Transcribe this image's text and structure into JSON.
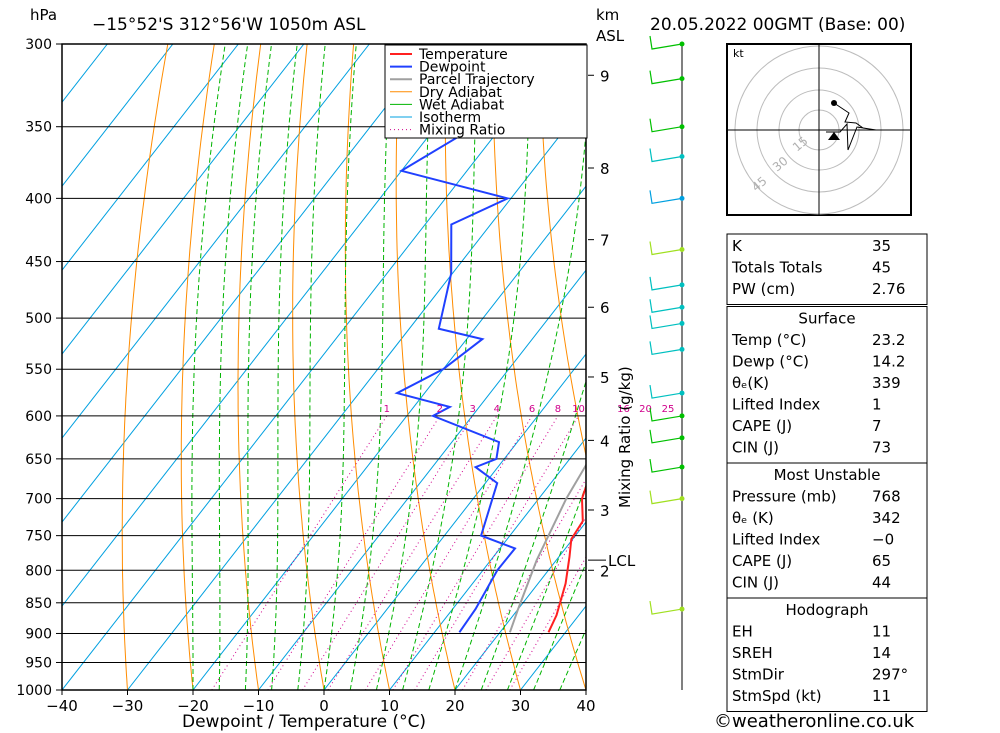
{
  "header": {
    "pressure_unit": "hPa",
    "location": "−15°52'S  312°56'W  1050m  ASL",
    "km_label": "km",
    "asl_label": "ASL",
    "datetime": "20.05.2022  00GMT  (Base: 00)"
  },
  "chart_data": {
    "type": "line",
    "title": "Skew-T log-P diagram",
    "xlabel": "Dewpoint / Temperature (°C)",
    "ylabel": "hPa",
    "right_axis_label": "Mixing Ratio (g/kg)",
    "xlim": [
      -40,
      40
    ],
    "ylim": [
      1000,
      300
    ],
    "x_ticks": [
      "−40",
      "−30",
      "−20",
      "−10",
      "0",
      "10",
      "20",
      "30",
      "40"
    ],
    "pressure_ticks": [
      300,
      350,
      400,
      450,
      500,
      550,
      600,
      650,
      700,
      750,
      800,
      850,
      900,
      950,
      1000
    ],
    "km_ticks": [
      {
        "label": "9",
        "p": 318
      },
      {
        "label": "8",
        "p": 378
      },
      {
        "label": "7",
        "p": 432
      },
      {
        "label": "6",
        "p": 490
      },
      {
        "label": "5",
        "p": 558
      },
      {
        "label": "4",
        "p": 628
      },
      {
        "label": "3",
        "p": 715
      },
      {
        "label": "2",
        "p": 800
      }
    ],
    "lcl": {
      "label": "LCL",
      "p": 785
    },
    "mixing_ratio_labels": [
      "1",
      "2",
      "3",
      "4",
      "6",
      "8",
      "10",
      "16",
      "20",
      "25"
    ],
    "mixing_ratio_values": [
      1,
      2,
      3,
      4,
      6,
      8,
      10,
      16,
      20,
      25
    ],
    "legend": [
      "Temperature",
      "Dewpoint",
      "Parcel Trajectory",
      "Dry Adiabat",
      "Wet Adiabat",
      "Isotherm",
      "Mixing Ratio"
    ],
    "series": [
      {
        "name": "Temperature",
        "color": "#ff2020",
        "points": [
          [
            898,
            27.4
          ],
          [
            870,
            26.6
          ],
          [
            820,
            24.2
          ],
          [
            780,
            21.6
          ],
          [
            755,
            19.8
          ],
          [
            730,
            19.4
          ],
          [
            700,
            16.6
          ],
          [
            670,
            15.0
          ],
          [
            650,
            14.7
          ],
          [
            620,
            12.3
          ],
          [
            600,
            13.8
          ],
          [
            590,
            13.0
          ],
          [
            560,
            10.8
          ],
          [
            520,
            6.5
          ],
          [
            480,
            1.4
          ],
          [
            440,
            -3.5
          ],
          [
            400,
            -11.0
          ],
          [
            380,
            -14.3
          ],
          [
            355,
            -20.3
          ],
          [
            330,
            -26.6
          ],
          [
            312,
            -33.5
          ],
          [
            300,
            -35.0
          ]
        ]
      },
      {
        "name": "Dewpoint",
        "color": "#2040ff",
        "points": [
          [
            898,
            13.8
          ],
          [
            860,
            13.5
          ],
          [
            800,
            12.2
          ],
          [
            768,
            12.3
          ],
          [
            750,
            5.6
          ],
          [
            680,
            1.8
          ],
          [
            660,
            -3.4
          ],
          [
            650,
            -1.2
          ],
          [
            630,
            -2.8
          ],
          [
            600,
            -16.0
          ],
          [
            590,
            -14.5
          ],
          [
            575,
            -24.2
          ],
          [
            550,
            -20.0
          ],
          [
            520,
            -17.6
          ],
          [
            510,
            -25.5
          ],
          [
            460,
            -30.2
          ],
          [
            420,
            -36.0
          ],
          [
            400,
            -30.5
          ],
          [
            380,
            -50.0
          ],
          [
            350,
            -44.0
          ],
          [
            330,
            -40.0
          ],
          [
            310,
            -33.0
          ],
          [
            300,
            -42.0
          ]
        ]
      },
      {
        "name": "Parcel Trajectory",
        "color": "#a0a0a0",
        "points": [
          [
            898,
            21.5
          ],
          [
            860,
            20.0
          ],
          [
            785,
            17.0
          ],
          [
            700,
            14.2
          ],
          [
            600,
            11.8
          ],
          [
            500,
            9.0
          ],
          [
            450,
            7.5
          ],
          [
            400,
            4.0
          ],
          [
            350,
            -0.5
          ],
          [
            300,
            -8.0
          ]
        ]
      }
    ],
    "wind_barbs": [
      {
        "p": 300,
        "color": "#00c000"
      },
      {
        "p": 320,
        "color": "#00c000"
      },
      {
        "p": 350,
        "color": "#00c000"
      },
      {
        "p": 370,
        "color": "#00c0c0"
      },
      {
        "p": 400,
        "color": "#00a0e0"
      },
      {
        "p": 440,
        "color": "#a0e020"
      },
      {
        "p": 470,
        "color": "#00c0c0"
      },
      {
        "p": 490,
        "color": "#00c0c0"
      },
      {
        "p": 505,
        "color": "#00c0c0"
      },
      {
        "p": 530,
        "color": "#00c0c0"
      },
      {
        "p": 575,
        "color": "#00c0c0"
      },
      {
        "p": 600,
        "color": "#00c000"
      },
      {
        "p": 625,
        "color": "#00c000"
      },
      {
        "p": 660,
        "color": "#00c000"
      },
      {
        "p": 700,
        "color": "#a0e020"
      },
      {
        "p": 860,
        "color": "#a0e020"
      }
    ]
  },
  "hodograph": {
    "unit": "kt",
    "ring_labels": [
      "15",
      "30",
      "45"
    ]
  },
  "table_indices": [
    {
      "label": "K",
      "value": "35"
    },
    {
      "label": "Totals Totals",
      "value": "45"
    },
    {
      "label": "PW (cm)",
      "value": "2.76"
    }
  ],
  "table_surface": {
    "title": "Surface",
    "rows": [
      {
        "label": "Temp (°C)",
        "value": "23.2"
      },
      {
        "label": "Dewp (°C)",
        "value": "14.2"
      },
      {
        "label": "θₑ(K)",
        "value": "339"
      },
      {
        "label": "Lifted Index",
        "value": "1"
      },
      {
        "label": "CAPE (J)",
        "value": "7"
      },
      {
        "label": "CIN (J)",
        "value": "73"
      }
    ]
  },
  "table_unstable": {
    "title": "Most Unstable",
    "rows": [
      {
        "label": "Pressure (mb)",
        "value": "768"
      },
      {
        "label": "θₑ (K)",
        "value": "342"
      },
      {
        "label": "Lifted Index",
        "value": "−0"
      },
      {
        "label": "CAPE (J)",
        "value": "65"
      },
      {
        "label": "CIN (J)",
        "value": "44"
      }
    ]
  },
  "table_hodograph": {
    "title": "Hodograph",
    "rows": [
      {
        "label": "EH",
        "value": "11"
      },
      {
        "label": "SREH",
        "value": "14"
      },
      {
        "label": "StmDir",
        "value": "297°"
      },
      {
        "label": "StmSpd (kt)",
        "value": "11"
      }
    ]
  },
  "footer": {
    "copyright": "©weatheronline.co.uk"
  },
  "colors": {
    "temperature": "#ff2020",
    "dewpoint": "#2040ff",
    "parcel": "#a0a0a0",
    "dry_adiabat": "#ff8c00",
    "wet_adiabat": "#00b400",
    "isotherm": "#00a0e0",
    "mixing_ratio": "#d0008c"
  }
}
